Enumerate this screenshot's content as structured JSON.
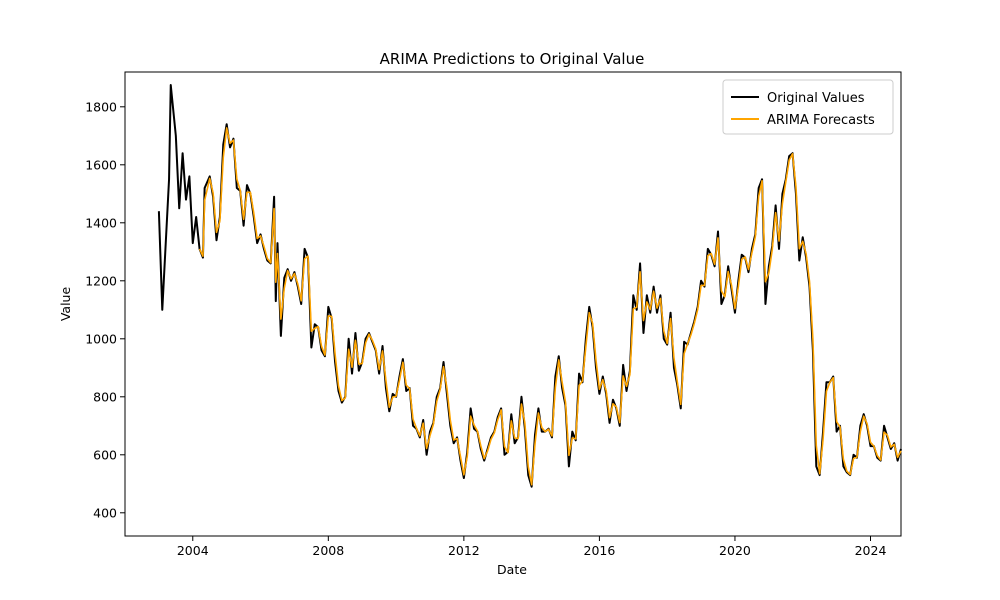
{
  "chart_data": {
    "type": "line",
    "title": "ARIMA Predictions to Original Value",
    "xlabel": "Date",
    "ylabel": "Value",
    "xlim": [
      2002.0,
      2024.9
    ],
    "ylim": [
      320,
      1920
    ],
    "x_ticks": [
      2004,
      2008,
      2012,
      2016,
      2020,
      2024
    ],
    "x_tick_labels": [
      "2004",
      "2008",
      "2012",
      "2016",
      "2020",
      "2024"
    ],
    "y_ticks": [
      400,
      600,
      800,
      1000,
      1200,
      1400,
      1600,
      1800
    ],
    "y_tick_labels": [
      "400",
      "600",
      "800",
      "1000",
      "1200",
      "1400",
      "1600",
      "1800"
    ],
    "legend": {
      "position": "upper right"
    },
    "grid": false,
    "series": [
      {
        "name": "Original Values",
        "color": "#000000",
        "points": [
          [
            2003.0,
            1440
          ],
          [
            2003.1,
            1100
          ],
          [
            2003.3,
            1550
          ],
          [
            2003.35,
            1875
          ],
          [
            2003.5,
            1700
          ],
          [
            2003.6,
            1450
          ],
          [
            2003.7,
            1640
          ],
          [
            2003.8,
            1480
          ],
          [
            2003.9,
            1560
          ],
          [
            2004.0,
            1330
          ],
          [
            2004.1,
            1420
          ],
          [
            2004.2,
            1310
          ],
          [
            2004.3,
            1280
          ],
          [
            2004.35,
            1520
          ],
          [
            2004.5,
            1560
          ],
          [
            2004.6,
            1490
          ],
          [
            2004.7,
            1340
          ],
          [
            2004.8,
            1420
          ],
          [
            2004.9,
            1670
          ],
          [
            2005.0,
            1740
          ],
          [
            2005.1,
            1660
          ],
          [
            2005.2,
            1690
          ],
          [
            2005.3,
            1520
          ],
          [
            2005.4,
            1510
          ],
          [
            2005.5,
            1390
          ],
          [
            2005.6,
            1530
          ],
          [
            2005.7,
            1500
          ],
          [
            2005.8,
            1420
          ],
          [
            2005.9,
            1330
          ],
          [
            2006.0,
            1360
          ],
          [
            2006.1,
            1310
          ],
          [
            2006.2,
            1270
          ],
          [
            2006.3,
            1260
          ],
          [
            2006.4,
            1490
          ],
          [
            2006.45,
            1130
          ],
          [
            2006.5,
            1330
          ],
          [
            2006.6,
            1010
          ],
          [
            2006.7,
            1210
          ],
          [
            2006.8,
            1240
          ],
          [
            2006.9,
            1200
          ],
          [
            2007.0,
            1230
          ],
          [
            2007.1,
            1180
          ],
          [
            2007.2,
            1120
          ],
          [
            2007.3,
            1310
          ],
          [
            2007.4,
            1280
          ],
          [
            2007.5,
            970
          ],
          [
            2007.6,
            1050
          ],
          [
            2007.7,
            1040
          ],
          [
            2007.8,
            960
          ],
          [
            2007.9,
            940
          ],
          [
            2008.0,
            1110
          ],
          [
            2008.1,
            1070
          ],
          [
            2008.2,
            920
          ],
          [
            2008.3,
            820
          ],
          [
            2008.4,
            780
          ],
          [
            2008.5,
            800
          ],
          [
            2008.6,
            1000
          ],
          [
            2008.7,
            880
          ],
          [
            2008.8,
            1020
          ],
          [
            2008.9,
            890
          ],
          [
            2009.0,
            920
          ],
          [
            2009.1,
            1000
          ],
          [
            2009.2,
            1020
          ],
          [
            2009.3,
            990
          ],
          [
            2009.4,
            960
          ],
          [
            2009.5,
            880
          ],
          [
            2009.6,
            975
          ],
          [
            2009.7,
            830
          ],
          [
            2009.8,
            750
          ],
          [
            2009.9,
            810
          ],
          [
            2010.0,
            800
          ],
          [
            2010.1,
            870
          ],
          [
            2010.2,
            930
          ],
          [
            2010.3,
            820
          ],
          [
            2010.4,
            830
          ],
          [
            2010.5,
            700
          ],
          [
            2010.6,
            690
          ],
          [
            2010.7,
            660
          ],
          [
            2010.8,
            720
          ],
          [
            2010.9,
            600
          ],
          [
            2011.0,
            680
          ],
          [
            2011.1,
            710
          ],
          [
            2011.2,
            800
          ],
          [
            2011.3,
            830
          ],
          [
            2011.4,
            920
          ],
          [
            2011.5,
            810
          ],
          [
            2011.6,
            700
          ],
          [
            2011.7,
            640
          ],
          [
            2011.8,
            660
          ],
          [
            2011.9,
            580
          ],
          [
            2012.0,
            520
          ],
          [
            2012.1,
            610
          ],
          [
            2012.2,
            760
          ],
          [
            2012.3,
            690
          ],
          [
            2012.4,
            680
          ],
          [
            2012.5,
            620
          ],
          [
            2012.6,
            580
          ],
          [
            2012.7,
            620
          ],
          [
            2012.8,
            660
          ],
          [
            2012.9,
            680
          ],
          [
            2013.0,
            730
          ],
          [
            2013.1,
            760
          ],
          [
            2013.2,
            600
          ],
          [
            2013.3,
            610
          ],
          [
            2013.4,
            740
          ],
          [
            2013.5,
            640
          ],
          [
            2013.6,
            660
          ],
          [
            2013.7,
            800
          ],
          [
            2013.8,
            690
          ],
          [
            2013.9,
            530
          ],
          [
            2014.0,
            490
          ],
          [
            2014.1,
            670
          ],
          [
            2014.2,
            760
          ],
          [
            2014.3,
            680
          ],
          [
            2014.4,
            680
          ],
          [
            2014.5,
            690
          ],
          [
            2014.6,
            660
          ],
          [
            2014.7,
            870
          ],
          [
            2014.8,
            940
          ],
          [
            2014.9,
            830
          ],
          [
            2015.0,
            770
          ],
          [
            2015.1,
            560
          ],
          [
            2015.2,
            680
          ],
          [
            2015.3,
            650
          ],
          [
            2015.4,
            880
          ],
          [
            2015.5,
            850
          ],
          [
            2015.6,
            1000
          ],
          [
            2015.7,
            1110
          ],
          [
            2015.8,
            1040
          ],
          [
            2015.9,
            900
          ],
          [
            2016.0,
            810
          ],
          [
            2016.1,
            870
          ],
          [
            2016.2,
            810
          ],
          [
            2016.3,
            710
          ],
          [
            2016.4,
            790
          ],
          [
            2016.5,
            760
          ],
          [
            2016.6,
            700
          ],
          [
            2016.7,
            910
          ],
          [
            2016.8,
            820
          ],
          [
            2016.9,
            890
          ],
          [
            2017.0,
            1150
          ],
          [
            2017.1,
            1100
          ],
          [
            2017.2,
            1260
          ],
          [
            2017.3,
            1020
          ],
          [
            2017.4,
            1150
          ],
          [
            2017.5,
            1090
          ],
          [
            2017.6,
            1180
          ],
          [
            2017.7,
            1090
          ],
          [
            2017.8,
            1150
          ],
          [
            2017.9,
            1000
          ],
          [
            2018.0,
            980
          ],
          [
            2018.1,
            1090
          ],
          [
            2018.2,
            900
          ],
          [
            2018.3,
            840
          ],
          [
            2018.4,
            760
          ],
          [
            2018.5,
            990
          ],
          [
            2018.6,
            980
          ],
          [
            2018.7,
            1020
          ],
          [
            2018.8,
            1060
          ],
          [
            2018.9,
            1110
          ],
          [
            2019.0,
            1200
          ],
          [
            2019.1,
            1180
          ],
          [
            2019.2,
            1310
          ],
          [
            2019.3,
            1290
          ],
          [
            2019.4,
            1250
          ],
          [
            2019.5,
            1370
          ],
          [
            2019.6,
            1120
          ],
          [
            2019.7,
            1150
          ],
          [
            2019.8,
            1250
          ],
          [
            2019.9,
            1170
          ],
          [
            2020.0,
            1090
          ],
          [
            2020.1,
            1200
          ],
          [
            2020.2,
            1290
          ],
          [
            2020.3,
            1280
          ],
          [
            2020.4,
            1230
          ],
          [
            2020.5,
            1310
          ],
          [
            2020.6,
            1360
          ],
          [
            2020.7,
            1520
          ],
          [
            2020.8,
            1550
          ],
          [
            2020.9,
            1120
          ],
          [
            2021.0,
            1250
          ],
          [
            2021.1,
            1320
          ],
          [
            2021.2,
            1460
          ],
          [
            2021.3,
            1310
          ],
          [
            2021.4,
            1500
          ],
          [
            2021.5,
            1550
          ],
          [
            2021.6,
            1630
          ],
          [
            2021.7,
            1640
          ],
          [
            2021.8,
            1500
          ],
          [
            2021.9,
            1270
          ],
          [
            2022.0,
            1350
          ],
          [
            2022.1,
            1280
          ],
          [
            2022.2,
            1180
          ],
          [
            2022.3,
            960
          ],
          [
            2022.4,
            560
          ],
          [
            2022.5,
            530
          ],
          [
            2022.6,
            680
          ],
          [
            2022.7,
            850
          ],
          [
            2022.8,
            850
          ],
          [
            2022.9,
            870
          ],
          [
            2023.0,
            680
          ],
          [
            2023.1,
            700
          ],
          [
            2023.2,
            560
          ],
          [
            2023.3,
            540
          ],
          [
            2023.4,
            530
          ],
          [
            2023.5,
            600
          ],
          [
            2023.6,
            590
          ],
          [
            2023.7,
            700
          ],
          [
            2023.8,
            740
          ],
          [
            2023.9,
            700
          ],
          [
            2024.0,
            630
          ],
          [
            2024.1,
            630
          ],
          [
            2024.2,
            590
          ],
          [
            2024.3,
            580
          ],
          [
            2024.4,
            700
          ],
          [
            2024.5,
            660
          ],
          [
            2024.6,
            620
          ],
          [
            2024.7,
            640
          ],
          [
            2024.8,
            580
          ],
          [
            2024.9,
            620
          ]
        ]
      },
      {
        "name": "ARIMA Forecasts",
        "color": "#ffa500",
        "points": []
      }
    ]
  }
}
